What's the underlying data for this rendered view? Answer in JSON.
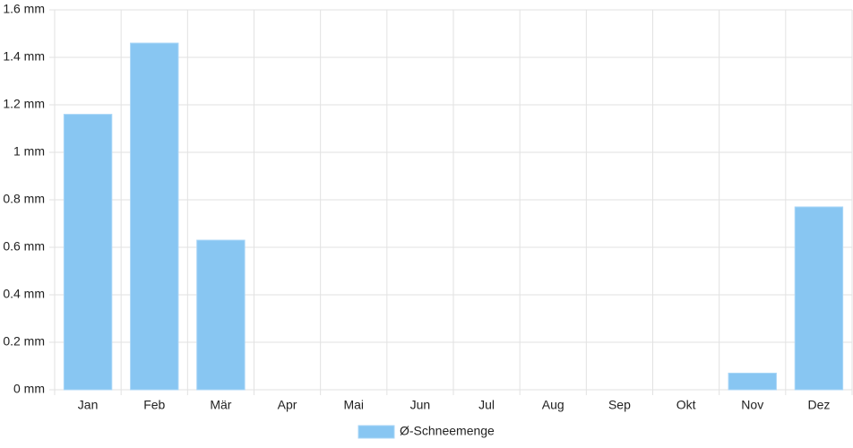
{
  "chart_data": {
    "type": "bar",
    "categories": [
      "Jan",
      "Feb",
      "Mär",
      "Apr",
      "Mai",
      "Jun",
      "Jul",
      "Aug",
      "Sep",
      "Okt",
      "Nov",
      "Dez"
    ],
    "series": [
      {
        "name": "Ø-Schneemenge",
        "color": "#88c6f2",
        "values": [
          1.16,
          1.46,
          0.63,
          0,
          0,
          0,
          0,
          0,
          0,
          0,
          0.07,
          0.77
        ]
      }
    ],
    "ylim": [
      0,
      1.6
    ],
    "yticks": [
      {
        "value": 0,
        "label": "0 mm"
      },
      {
        "value": 0.2,
        "label": "0.2 mm"
      },
      {
        "value": 0.4,
        "label": "0.4 mm"
      },
      {
        "value": 0.6,
        "label": "0.6 mm"
      },
      {
        "value": 0.8,
        "label": "0.8 mm"
      },
      {
        "value": 1,
        "label": "1 mm"
      },
      {
        "value": 1.2,
        "label": "1.2 mm"
      },
      {
        "value": 1.4,
        "label": "1.4 mm"
      },
      {
        "value": 1.6,
        "label": "1.6 mm"
      }
    ],
    "grid": true,
    "legend": "bottom"
  }
}
